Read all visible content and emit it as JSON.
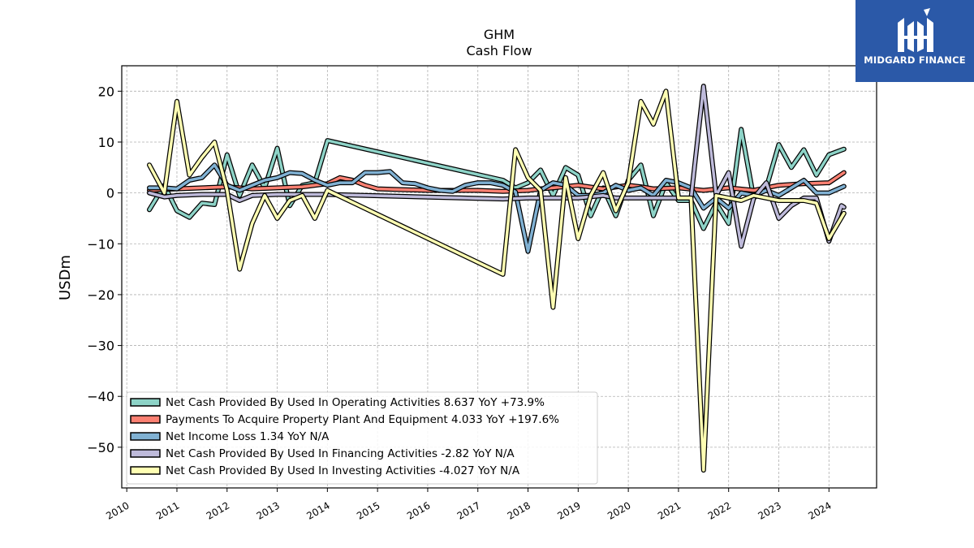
{
  "brand": {
    "name": "MIDGARD FINANCE",
    "bg_color": "#2b59a8"
  },
  "chart_data": {
    "type": "line",
    "title": "GHM",
    "subtitle": "Cash Flow",
    "ylabel": "USDm",
    "xlabel": "",
    "ylim": [
      -58,
      25
    ],
    "xlim": [
      2009.9,
      2024.95
    ],
    "yticks": [
      20,
      10,
      0,
      -10,
      -20,
      -30,
      -40,
      -50
    ],
    "ytick_labels": [
      "20",
      "10",
      "0",
      "−10",
      "−20",
      "−30",
      "−40",
      "−50"
    ],
    "xticks": [
      2010,
      2011,
      2012,
      2013,
      2014,
      2015,
      2016,
      2017,
      2018,
      2019,
      2020,
      2021,
      2022,
      2023,
      2024
    ],
    "xtick_labels": [
      "2010",
      "2011",
      "2012",
      "2013",
      "2014",
      "2015",
      "2016",
      "2017",
      "2018",
      "2019",
      "2020",
      "2021",
      "2022",
      "2023",
      "2024"
    ],
    "grid": true,
    "legend_position": "lower-left",
    "series": [
      {
        "name": "Net Cash Provided By Used In Operating Activities  8.637 YoY +73.9%",
        "color": "#8dd3c7",
        "points": [
          [
            2010.45,
            -3.3
          ],
          [
            2010.75,
            1.5
          ],
          [
            2011.0,
            -3.5
          ],
          [
            2011.25,
            -4.8
          ],
          [
            2011.5,
            -2.0
          ],
          [
            2011.75,
            -2.3
          ],
          [
            2012.0,
            7.5
          ],
          [
            2012.25,
            -0.5
          ],
          [
            2012.5,
            5.5
          ],
          [
            2012.75,
            1.0
          ],
          [
            2013.0,
            8.8
          ],
          [
            2013.25,
            -2.5
          ],
          [
            2013.5,
            1.5
          ],
          [
            2013.75,
            2.0
          ],
          [
            2014.0,
            10.3
          ],
          [
            2017.5,
            2.5
          ],
          [
            2017.75,
            1.0
          ],
          [
            2018.0,
            2.0
          ],
          [
            2018.25,
            4.5
          ],
          [
            2018.5,
            -0.5
          ],
          [
            2018.75,
            5.0
          ],
          [
            2019.0,
            3.5
          ],
          [
            2019.25,
            -4.5
          ],
          [
            2019.5,
            1.0
          ],
          [
            2019.75,
            -4.5
          ],
          [
            2020.0,
            2.5
          ],
          [
            2020.25,
            5.5
          ],
          [
            2020.5,
            -4.5
          ],
          [
            2020.75,
            2.0
          ],
          [
            2021.0,
            -1.5
          ],
          [
            2021.25,
            -1.5
          ],
          [
            2021.5,
            -7.0
          ],
          [
            2021.75,
            -2.0
          ],
          [
            2022.0,
            -6.0
          ],
          [
            2022.25,
            12.5
          ],
          [
            2022.5,
            -1.0
          ],
          [
            2022.75,
            1.0
          ],
          [
            2023.0,
            9.5
          ],
          [
            2023.25,
            5.0
          ],
          [
            2023.5,
            8.5
          ],
          [
            2023.75,
            3.5
          ],
          [
            2024.0,
            7.5
          ],
          [
            2024.3,
            8.6
          ]
        ]
      },
      {
        "name": "Payments To Acquire Property Plant And Equipment  4.033 YoY +197.6%",
        "color": "#fb8072",
        "points": [
          [
            2010.45,
            0.5
          ],
          [
            2010.75,
            0.7
          ],
          [
            2011.0,
            0.8
          ],
          [
            2011.5,
            1.0
          ],
          [
            2012.0,
            1.2
          ],
          [
            2012.5,
            0.8
          ],
          [
            2013.0,
            1.0
          ],
          [
            2013.5,
            1.2
          ],
          [
            2014.0,
            1.8
          ],
          [
            2014.25,
            3.0
          ],
          [
            2014.5,
            2.5
          ],
          [
            2014.75,
            1.5
          ],
          [
            2015.0,
            0.8
          ],
          [
            2016.0,
            0.5
          ],
          [
            2017.0,
            0.5
          ],
          [
            2017.5,
            0.3
          ],
          [
            2018.0,
            0.5
          ],
          [
            2018.25,
            0.8
          ],
          [
            2018.5,
            1.0
          ],
          [
            2019.0,
            1.5
          ],
          [
            2019.5,
            0.8
          ],
          [
            2020.0,
            1.5
          ],
          [
            2020.25,
            1.2
          ],
          [
            2020.5,
            0.8
          ],
          [
            2021.0,
            1.0
          ],
          [
            2021.5,
            0.5
          ],
          [
            2022.0,
            1.0
          ],
          [
            2022.5,
            0.5
          ],
          [
            2023.0,
            1.5
          ],
          [
            2023.5,
            1.8
          ],
          [
            2024.0,
            2.0
          ],
          [
            2024.3,
            4.0
          ]
        ]
      },
      {
        "name": "Net Income Loss  1.34 YoY N/A",
        "color": "#80b1d3",
        "points": [
          [
            2010.45,
            1.0
          ],
          [
            2010.75,
            1.0
          ],
          [
            2011.0,
            0.8
          ],
          [
            2011.25,
            2.5
          ],
          [
            2011.5,
            3.0
          ],
          [
            2011.75,
            5.5
          ],
          [
            2012.0,
            1.5
          ],
          [
            2012.25,
            0.5
          ],
          [
            2012.5,
            1.5
          ],
          [
            2012.75,
            2.5
          ],
          [
            2013.0,
            3.0
          ],
          [
            2013.25,
            4.0
          ],
          [
            2013.5,
            3.8
          ],
          [
            2013.75,
            2.5
          ],
          [
            2014.0,
            1.5
          ],
          [
            2014.25,
            2.0
          ],
          [
            2014.5,
            2.0
          ],
          [
            2014.75,
            4.0
          ],
          [
            2015.0,
            4.0
          ],
          [
            2015.25,
            4.2
          ],
          [
            2015.5,
            2.0
          ],
          [
            2015.75,
            1.8
          ],
          [
            2016.0,
            1.0
          ],
          [
            2016.25,
            0.5
          ],
          [
            2016.5,
            0.3
          ],
          [
            2016.75,
            1.5
          ],
          [
            2017.0,
            2.0
          ],
          [
            2017.25,
            2.0
          ],
          [
            2017.5,
            1.5
          ],
          [
            2017.75,
            0.2
          ],
          [
            2018.0,
            -11.5
          ],
          [
            2018.25,
            0.5
          ],
          [
            2018.5,
            2.0
          ],
          [
            2018.75,
            1.5
          ],
          [
            2019.0,
            -0.5
          ],
          [
            2019.25,
            -0.5
          ],
          [
            2019.5,
            0.0
          ],
          [
            2019.75,
            1.5
          ],
          [
            2020.0,
            0.5
          ],
          [
            2020.25,
            1.0
          ],
          [
            2020.5,
            -0.5
          ],
          [
            2020.75,
            2.5
          ],
          [
            2021.0,
            2.0
          ],
          [
            2021.25,
            1.0
          ],
          [
            2021.5,
            -3.0
          ],
          [
            2021.75,
            -1.0
          ],
          [
            2022.0,
            -3.0
          ],
          [
            2022.25,
            0.0
          ],
          [
            2022.5,
            -0.5
          ],
          [
            2022.75,
            0.5
          ],
          [
            2023.0,
            -0.5
          ],
          [
            2023.25,
            1.0
          ],
          [
            2023.5,
            2.5
          ],
          [
            2023.75,
            0.0
          ],
          [
            2024.0,
            0.0
          ],
          [
            2024.3,
            1.3
          ]
        ]
      },
      {
        "name": "Net Cash Provided By Used In Financing Activities  -2.82 YoY N/A",
        "color": "#bebada",
        "points": [
          [
            2010.45,
            0.0
          ],
          [
            2010.75,
            -0.8
          ],
          [
            2011.0,
            -0.5
          ],
          [
            2011.5,
            -0.3
          ],
          [
            2012.0,
            -0.3
          ],
          [
            2012.25,
            -1.5
          ],
          [
            2012.5,
            -0.5
          ],
          [
            2013.0,
            -0.3
          ],
          [
            2014.0,
            -0.3
          ],
          [
            2017.5,
            -1.2
          ],
          [
            2018.0,
            -1.0
          ],
          [
            2019.0,
            -1.0
          ],
          [
            2019.5,
            -0.5
          ],
          [
            2019.75,
            -1.0
          ],
          [
            2020.0,
            -1.0
          ],
          [
            2021.0,
            -1.0
          ],
          [
            2021.25,
            -1.0
          ],
          [
            2021.5,
            21.0
          ],
          [
            2021.75,
            -0.5
          ],
          [
            2022.0,
            4.0
          ],
          [
            2022.25,
            -10.5
          ],
          [
            2022.5,
            -1.0
          ],
          [
            2022.75,
            2.0
          ],
          [
            2023.0,
            -5.0
          ],
          [
            2023.25,
            -2.5
          ],
          [
            2023.5,
            -1.0
          ],
          [
            2023.75,
            -1.0
          ],
          [
            2024.0,
            -9.5
          ],
          [
            2024.25,
            -2.5
          ],
          [
            2024.3,
            -2.8
          ]
        ]
      },
      {
        "name": "Net Cash Provided By Used In Investing Activities  -4.027 YoY N/A",
        "color": "#ffffb3",
        "points": [
          [
            2010.45,
            5.5
          ],
          [
            2010.75,
            0.0
          ],
          [
            2011.0,
            18.0
          ],
          [
            2011.25,
            3.5
          ],
          [
            2011.5,
            7.0
          ],
          [
            2011.75,
            10.0
          ],
          [
            2012.0,
            0.5
          ],
          [
            2012.25,
            -15.0
          ],
          [
            2012.5,
            -6.0
          ],
          [
            2012.75,
            -0.5
          ],
          [
            2013.0,
            -5.0
          ],
          [
            2013.25,
            -1.5
          ],
          [
            2013.5,
            -0.5
          ],
          [
            2013.75,
            -5.0
          ],
          [
            2014.0,
            0.5
          ],
          [
            2017.5,
            -16.0
          ],
          [
            2017.75,
            8.5
          ],
          [
            2018.0,
            3.0
          ],
          [
            2018.25,
            0.5
          ],
          [
            2018.5,
            -22.5
          ],
          [
            2018.75,
            3.0
          ],
          [
            2019.0,
            -9.0
          ],
          [
            2019.25,
            -0.5
          ],
          [
            2019.5,
            4.0
          ],
          [
            2019.75,
            -3.5
          ],
          [
            2020.0,
            2.0
          ],
          [
            2020.25,
            18.0
          ],
          [
            2020.5,
            13.5
          ],
          [
            2020.75,
            20.0
          ],
          [
            2021.0,
            -1.0
          ],
          [
            2021.25,
            -1.0
          ],
          [
            2021.5,
            -54.5
          ],
          [
            2021.75,
            -0.5
          ],
          [
            2022.0,
            -1.0
          ],
          [
            2022.25,
            -1.5
          ],
          [
            2022.5,
            -0.5
          ],
          [
            2022.75,
            -1.0
          ],
          [
            2023.0,
            -1.5
          ],
          [
            2023.5,
            -1.5
          ],
          [
            2023.75,
            -2.0
          ],
          [
            2024.0,
            -9.0
          ],
          [
            2024.3,
            -4.0
          ]
        ]
      }
    ]
  }
}
